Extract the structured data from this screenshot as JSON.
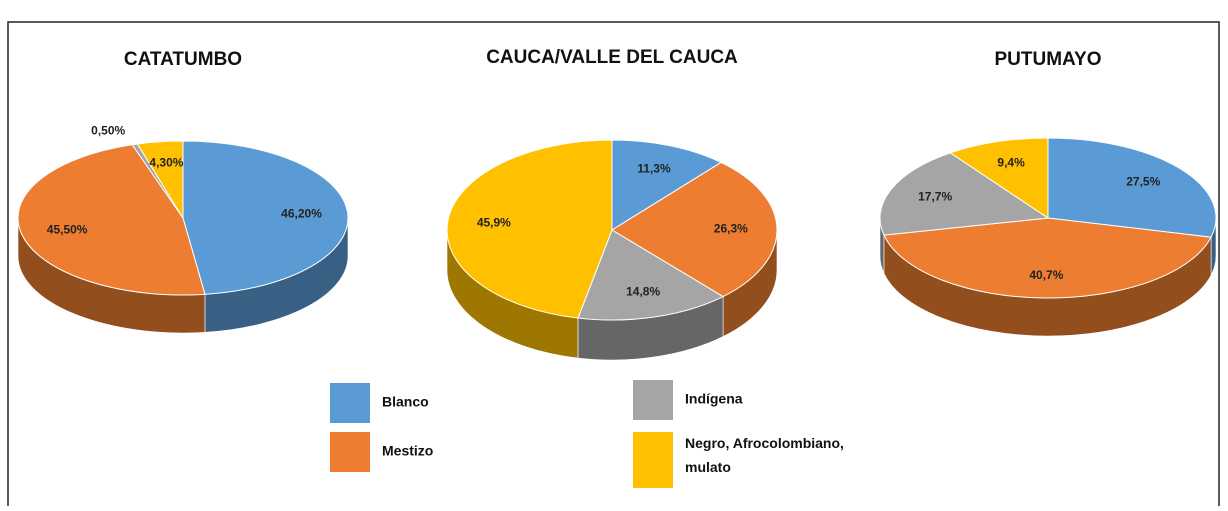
{
  "legend": {
    "labels": [
      "Blanco",
      "Mestizo",
      "Indígena",
      "Negro, Afrocolombiano, mulato"
    ],
    "colors": [
      "#5b9bd5",
      "#ed7d31",
      "#a5a5a5",
      "#ffc000"
    ]
  },
  "chart_data": [
    {
      "type": "pie",
      "title": "CATATUMBO",
      "values": [
        46.2,
        45.5,
        0.5,
        4.3
      ],
      "value_labels": [
        "46,20%",
        "45,50%",
        "0,50%",
        "4,30%"
      ]
    },
    {
      "type": "pie",
      "title": "CAUCA/VALLE DEL CAUCA",
      "values": [
        11.3,
        26.3,
        14.8,
        45.9
      ],
      "value_labels": [
        "11,3%",
        "26,3%",
        "14,8%",
        "45,9%"
      ]
    },
    {
      "type": "pie",
      "title": "PUTUMAYO",
      "values": [
        27.5,
        40.7,
        17.7,
        9.4
      ],
      "value_labels": [
        "27,5%",
        "40,7%",
        "17,7%",
        "9,4%"
      ]
    }
  ]
}
